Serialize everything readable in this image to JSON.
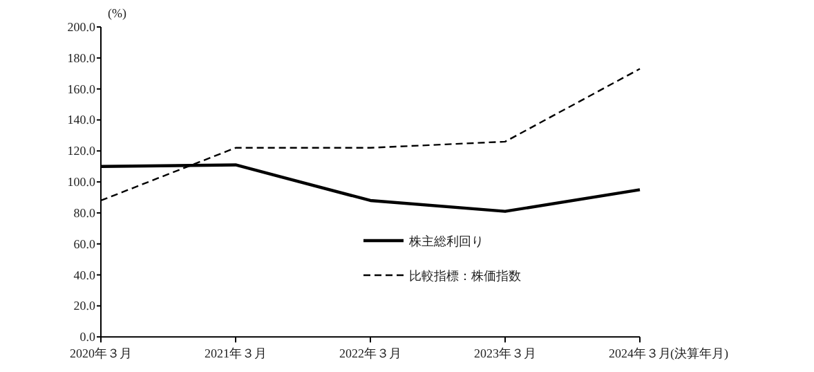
{
  "chart_data": {
    "type": "line",
    "ylabel": "(%)",
    "xlabel": "(決算年月)",
    "categories": [
      "2020年３月",
      "2021年３月",
      "2022年３月",
      "2023年３月",
      "2024年３月"
    ],
    "series": [
      {
        "name": "株主総利回り",
        "color": "#000000",
        "line_style": "solid",
        "values": [
          110,
          111,
          88,
          81,
          95
        ]
      },
      {
        "name": "比較指標：株価指数",
        "color": "#000000",
        "line_style": "dashed",
        "values": [
          88,
          122,
          122,
          126,
          173
        ]
      }
    ],
    "ylim": [
      0,
      200
    ],
    "yticks": [
      {
        "value": 0,
        "label": "0.0"
      },
      {
        "value": 20,
        "label": "20.0"
      },
      {
        "value": 40,
        "label": "40.0"
      },
      {
        "value": 60,
        "label": "60.0"
      },
      {
        "value": 80,
        "label": "80.0"
      },
      {
        "value": 100,
        "label": "100.0"
      },
      {
        "value": 120,
        "label": "120.0"
      },
      {
        "value": 140,
        "label": "140.0"
      },
      {
        "value": 160,
        "label": "160.0"
      },
      {
        "value": 180,
        "label": "180.0"
      },
      {
        "value": 200,
        "label": "200.0"
      }
    ],
    "grid": false,
    "legend": "bottom",
    "marker": "none"
  }
}
